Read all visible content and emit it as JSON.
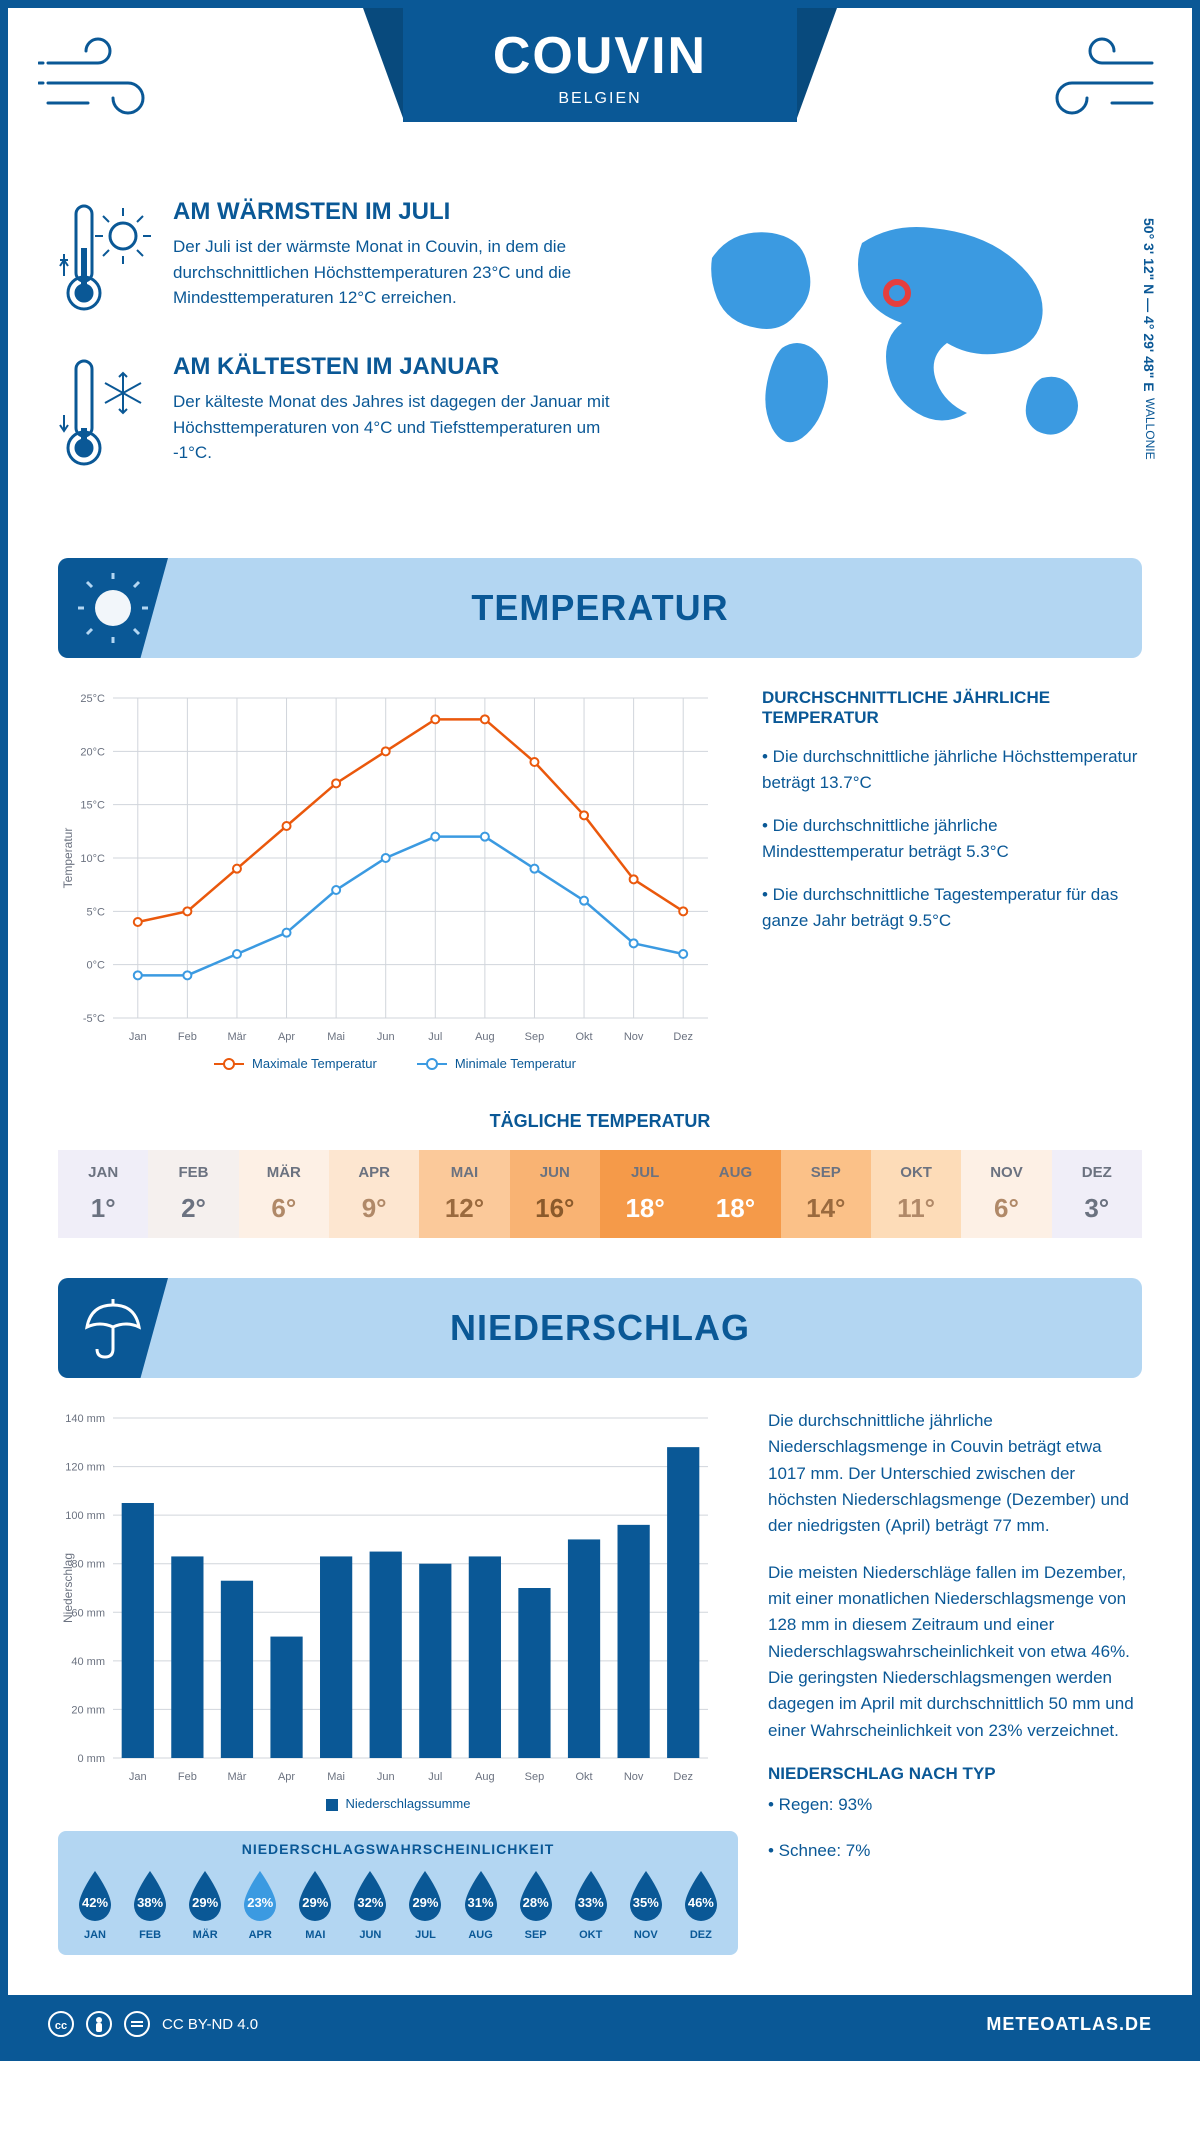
{
  "header": {
    "city": "COUVIN",
    "country": "BELGIEN"
  },
  "coords": "50° 3' 12\" N — 4° 29' 48\" E",
  "region": "WALLONIE",
  "warmest": {
    "title": "AM WÄRMSTEN IM JULI",
    "text": "Der Juli ist der wärmste Monat in Couvin, in dem die durchschnittlichen Höchsttemperaturen 23°C und die Mindesttemperaturen 12°C erreichen."
  },
  "coldest": {
    "title": "AM KÄLTESTEN IM JANUAR",
    "text": "Der kälteste Monat des Jahres ist dagegen der Januar mit Höchsttemperaturen von 4°C und Tiefsttemperaturen um -1°C."
  },
  "sections": {
    "temp": "TEMPERATUR",
    "precip": "NIEDERSCHLAG"
  },
  "temp_chart": {
    "months": [
      "Jan",
      "Feb",
      "Mär",
      "Apr",
      "Mai",
      "Jun",
      "Jul",
      "Aug",
      "Sep",
      "Okt",
      "Nov",
      "Dez"
    ],
    "max": [
      4,
      5,
      9,
      13,
      17,
      20,
      23,
      23,
      19,
      14,
      8,
      5
    ],
    "min": [
      -1,
      -1,
      1,
      3,
      7,
      10,
      12,
      12,
      9,
      6,
      2,
      1
    ],
    "ylim": [
      -5,
      25
    ],
    "ytick": 5,
    "max_color": "#ea580c",
    "min_color": "#3b9ae1",
    "legend_max": "Maximale Temperatur",
    "legend_min": "Minimale Temperatur",
    "ylabel": "Temperatur"
  },
  "temp_side": {
    "title": "DURCHSCHNITTLICHE JÄHRLICHE TEMPERATUR",
    "b1": "• Die durchschnittliche jährliche Höchsttemperatur beträgt 13.7°C",
    "b2": "• Die durchschnittliche jährliche Mindesttemperatur beträgt 5.3°C",
    "b3": "• Die durchschnittliche Tagestemperatur für das ganze Jahr beträgt 9.5°C"
  },
  "daily": {
    "title": "TÄGLICHE TEMPERATUR",
    "months": [
      "JAN",
      "FEB",
      "MÄR",
      "APR",
      "MAI",
      "JUN",
      "JUL",
      "AUG",
      "SEP",
      "OKT",
      "NOV",
      "DEZ"
    ],
    "values": [
      "1°",
      "2°",
      "6°",
      "9°",
      "12°",
      "16°",
      "18°",
      "18°",
      "14°",
      "11°",
      "6°",
      "3°"
    ],
    "bg": [
      "#f0eef8",
      "#f5f0ee",
      "#fdf0e5",
      "#fde6d0",
      "#fbc99a",
      "#f9b373",
      "#f59a49",
      "#f59a49",
      "#fbc188",
      "#fddcb8",
      "#fdf0e5",
      "#f0eef8"
    ],
    "fg": [
      "#6b7280",
      "#6b7280",
      "#b08968",
      "#b08968",
      "#9a6a3e",
      "#8b5a2b",
      "#ffffff",
      "#ffffff",
      "#9a6a3e",
      "#b08968",
      "#b08968",
      "#6b7280"
    ]
  },
  "precip_chart": {
    "months": [
      "Jan",
      "Feb",
      "Mär",
      "Apr",
      "Mai",
      "Jun",
      "Jul",
      "Aug",
      "Sep",
      "Okt",
      "Nov",
      "Dez"
    ],
    "values": [
      105,
      83,
      73,
      50,
      83,
      85,
      80,
      83,
      70,
      90,
      96,
      128
    ],
    "ylim": [
      0,
      140
    ],
    "ytick": 20,
    "bar_color": "#0a5896",
    "ylabel": "Niederschlag",
    "legend": "Niederschlagssumme"
  },
  "precip_text": {
    "p1": "Die durchschnittliche jährliche Niederschlagsmenge in Couvin beträgt etwa 1017 mm. Der Unterschied zwischen der höchsten Niederschlagsmenge (Dezember) und der niedrigsten (April) beträgt 77 mm.",
    "p2": "Die meisten Niederschläge fallen im Dezember, mit einer monatlichen Niederschlagsmenge von 128 mm in diesem Zeitraum und einer Niederschlagswahrscheinlichkeit von etwa 46%. Die geringsten Niederschlagsmengen werden dagegen im April mit durchschnittlich 50 mm und einer Wahrscheinlichkeit von 23% verzeichnet.",
    "type_title": "NIEDERSCHLAG NACH TYP",
    "t1": "• Regen: 93%",
    "t2": "• Schnee: 7%"
  },
  "prob": {
    "title": "NIEDERSCHLAGSWAHRSCHEINLICHKEIT",
    "months": [
      "JAN",
      "FEB",
      "MÄR",
      "APR",
      "MAI",
      "JUN",
      "JUL",
      "AUG",
      "SEP",
      "OKT",
      "NOV",
      "DEZ"
    ],
    "values": [
      "42%",
      "38%",
      "29%",
      "23%",
      "29%",
      "32%",
      "29%",
      "31%",
      "28%",
      "33%",
      "35%",
      "46%"
    ],
    "colors": [
      "#0a5896",
      "#0a5896",
      "#0a5896",
      "#3b9ae1",
      "#0a5896",
      "#0a5896",
      "#0a5896",
      "#0a5896",
      "#0a5896",
      "#0a5896",
      "#0a5896",
      "#0a5896"
    ]
  },
  "footer": {
    "license": "CC BY-ND 4.0",
    "site": "METEOATLAS.DE"
  }
}
